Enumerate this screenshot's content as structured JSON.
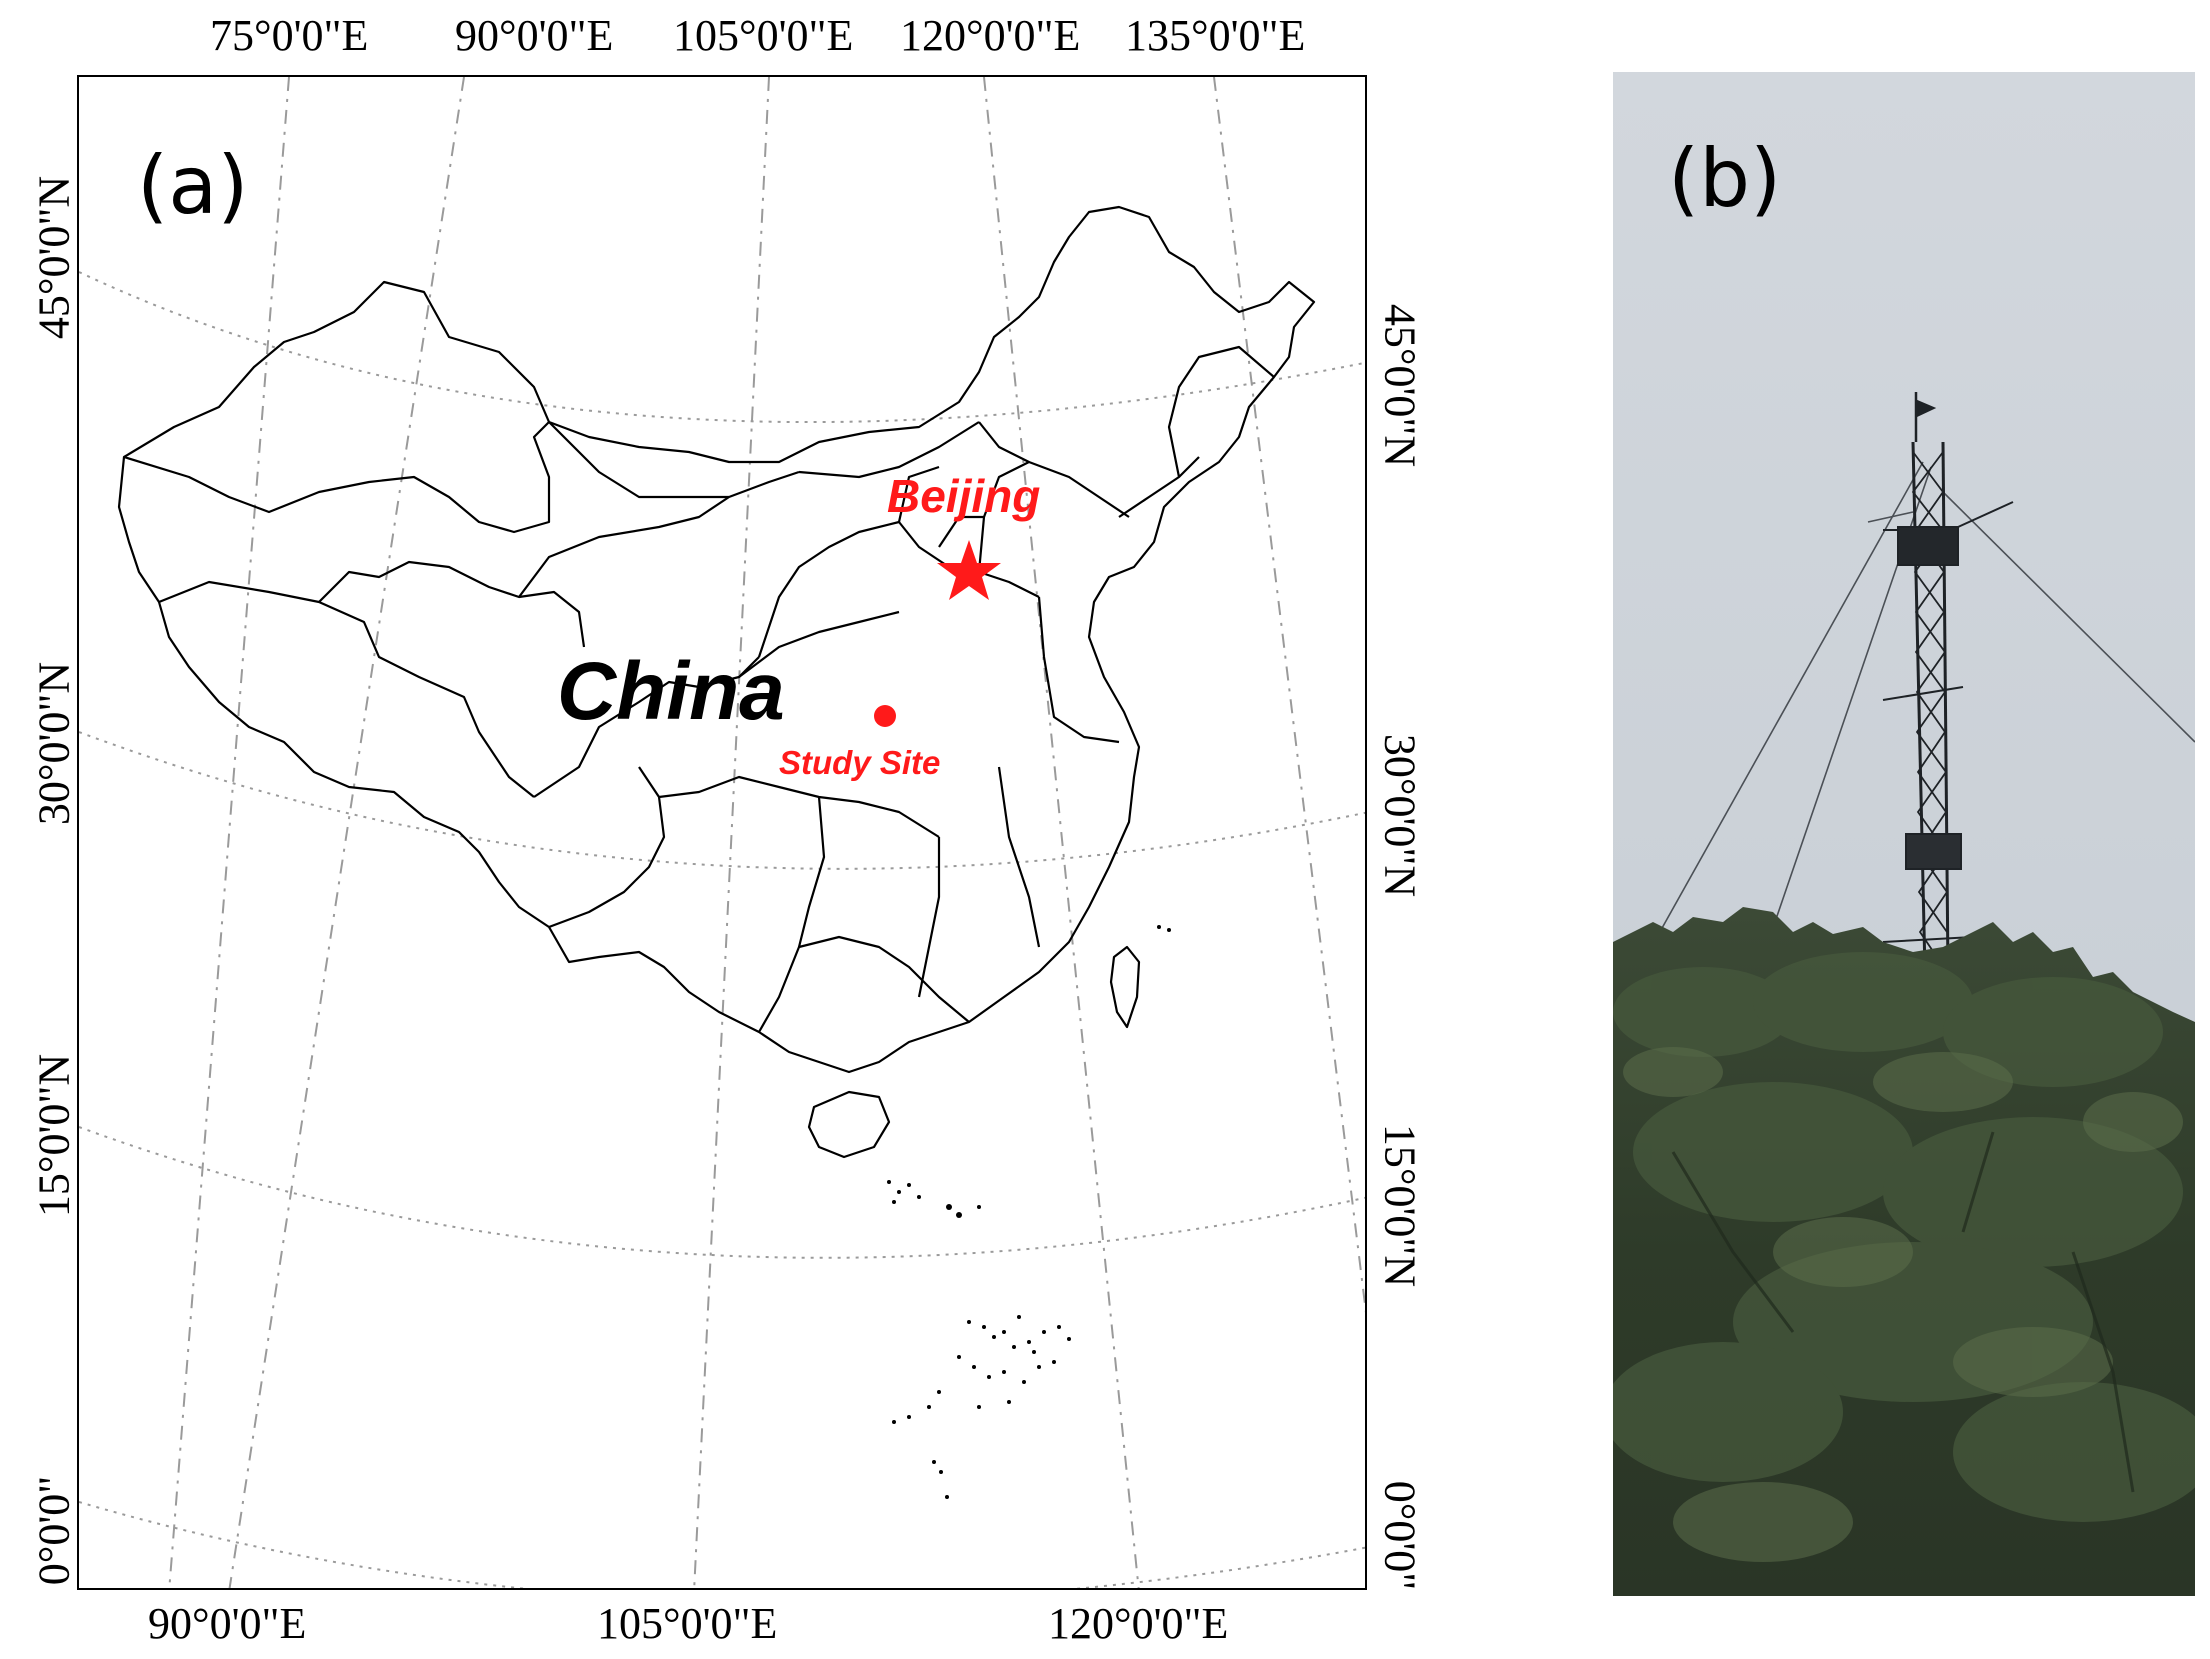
{
  "panel_a": {
    "label": "(a)",
    "top_ticks": [
      "75°0'0\"E",
      "90°0'0\"E",
      "105°0'0\"E",
      "120°0'0\"E",
      "135°0'0\"E"
    ],
    "bottom_ticks": [
      "90°0'0\"E",
      "105°0'0\"E",
      "120°0'0\"E"
    ],
    "left_ticks": [
      "45°0'0\"N",
      "30°0'0\"N",
      "15°0'0\"N",
      "0°0'0\""
    ],
    "right_ticks": [
      "45°0'0\"N",
      "30°0'0\"N",
      "15°0'0\"N",
      "0°0'0\""
    ],
    "country_label": "China",
    "capital_label": "Beijing",
    "site_label": "Study Site",
    "colors": {
      "annotation": "#ff1a1a",
      "boundary": "#000000",
      "graticule": "#9a9a9a"
    },
    "icons": {
      "capital": "star-icon",
      "site": "dot-icon"
    }
  },
  "panel_b": {
    "label": "(b)",
    "description_icons": [
      "tower-icon",
      "tree-canopy"
    ]
  }
}
